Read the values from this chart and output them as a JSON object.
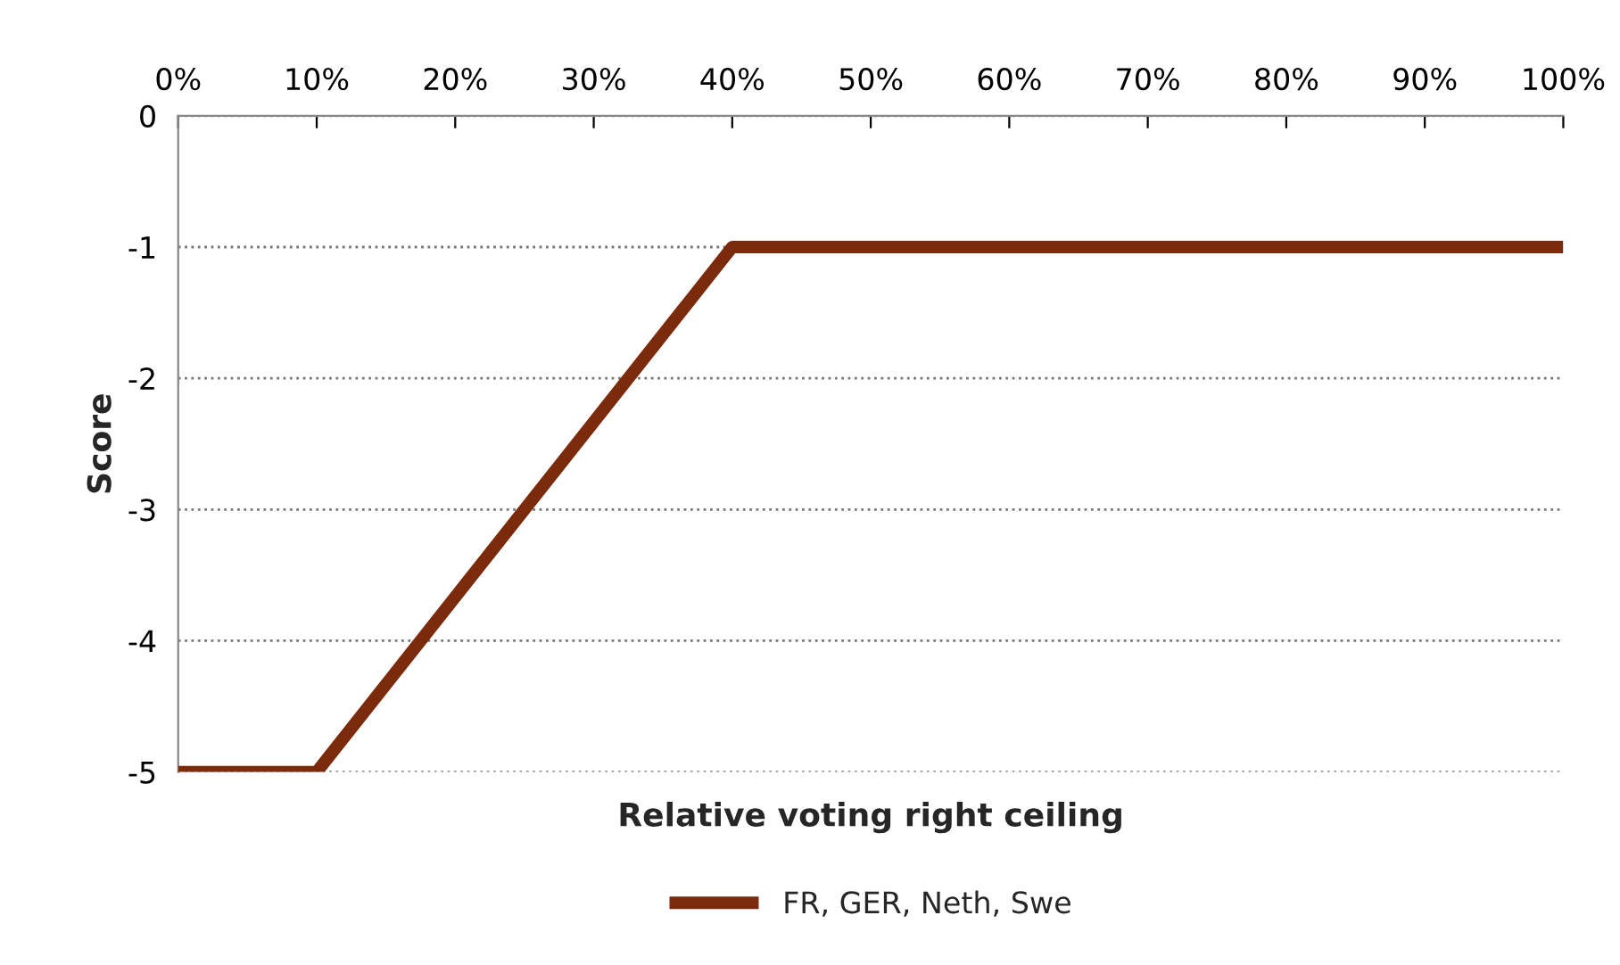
{
  "chart_data": {
    "type": "line",
    "xlabel": "Relative voting right ceiling",
    "ylabel": "Score",
    "series": [
      {
        "name": "FR, GER, Neth, Swe",
        "color": "#7b2a0c",
        "x": [
          0,
          10,
          40,
          100
        ],
        "values": [
          -5,
          -5,
          -1,
          -1
        ]
      }
    ],
    "xlim": [
      0,
      100
    ],
    "xticks": [
      {
        "value": 0,
        "label": "0%"
      },
      {
        "value": 10,
        "label": "10%"
      },
      {
        "value": 20,
        "label": "20%"
      },
      {
        "value": 30,
        "label": "30%"
      },
      {
        "value": 40,
        "label": "40%"
      },
      {
        "value": 50,
        "label": "50%"
      },
      {
        "value": 60,
        "label": "60%"
      },
      {
        "value": 70,
        "label": "70%"
      },
      {
        "value": 80,
        "label": "80%"
      },
      {
        "value": 90,
        "label": "90%"
      },
      {
        "value": 100,
        "label": "100%"
      }
    ],
    "ylim": [
      -5,
      0
    ],
    "yticks": [
      0,
      -1,
      -2,
      -3,
      -4,
      -5
    ],
    "grid": "y",
    "legend": "bottom",
    "marker": "none",
    "line_style": "solid"
  }
}
